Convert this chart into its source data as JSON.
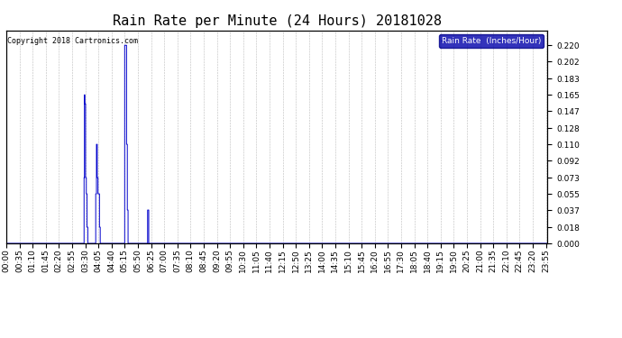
{
  "title": "Rain Rate per Minute (24 Hours) 20181028",
  "copyright": "Copyright 2018 Cartronics.com",
  "legend_label": "Rain Rate  (Inches/Hour)",
  "yticks": [
    0.0,
    0.018,
    0.037,
    0.055,
    0.073,
    0.092,
    0.11,
    0.128,
    0.147,
    0.165,
    0.183,
    0.202,
    0.22
  ],
  "ylim": [
    0.0,
    0.2365
  ],
  "line_color": "#0000cc",
  "background_color": "#ffffff",
  "grid_color": "#bbbbbb",
  "title_fontsize": 11,
  "tick_fontsize": 6.5,
  "total_minutes": 1440,
  "xtick_positions": [
    0,
    35,
    70,
    105,
    140,
    175,
    210,
    245,
    280,
    315,
    350,
    385,
    420,
    455,
    490,
    525,
    560,
    595,
    630,
    665,
    700,
    735,
    770,
    805,
    840,
    875,
    910,
    945,
    980,
    1015,
    1050,
    1085,
    1120,
    1155,
    1190,
    1225,
    1260,
    1295,
    1330,
    1365,
    1400,
    1435
  ],
  "xtick_labels": [
    "00:00",
    "00:35",
    "01:10",
    "01:45",
    "02:20",
    "02:55",
    "03:30",
    "04:05",
    "04:40",
    "05:15",
    "05:50",
    "06:25",
    "07:00",
    "07:35",
    "08:10",
    "08:45",
    "09:20",
    "09:55",
    "10:30",
    "11:05",
    "11:40",
    "12:15",
    "12:50",
    "13:25",
    "14:00",
    "14:35",
    "15:10",
    "15:45",
    "16:20",
    "16:55",
    "17:30",
    "18:05",
    "18:40",
    "19:15",
    "19:50",
    "20:25",
    "21:00",
    "21:35",
    "22:10",
    "22:45",
    "23:20",
    "23:55"
  ],
  "rain_data": [
    [
      207,
      0.073
    ],
    [
      208,
      0.165
    ],
    [
      209,
      0.155
    ],
    [
      210,
      0.155
    ],
    [
      211,
      0.073
    ],
    [
      212,
      0.073
    ],
    [
      213,
      0.055
    ],
    [
      214,
      0.055
    ],
    [
      215,
      0.018
    ],
    [
      216,
      0.018
    ],
    [
      238,
      0.055
    ],
    [
      239,
      0.055
    ],
    [
      240,
      0.11
    ],
    [
      241,
      0.11
    ],
    [
      242,
      0.073
    ],
    [
      243,
      0.073
    ],
    [
      244,
      0.055
    ],
    [
      245,
      0.055
    ],
    [
      246,
      0.055
    ],
    [
      247,
      0.055
    ],
    [
      248,
      0.018
    ],
    [
      249,
      0.018
    ],
    [
      315,
      0.22
    ],
    [
      316,
      0.22
    ],
    [
      317,
      0.22
    ],
    [
      318,
      0.22
    ],
    [
      319,
      0.22
    ],
    [
      320,
      0.11
    ],
    [
      321,
      0.11
    ],
    [
      322,
      0.037
    ],
    [
      323,
      0.037
    ],
    [
      376,
      0.037
    ],
    [
      377,
      0.037
    ],
    [
      378,
      0.037
    ]
  ]
}
